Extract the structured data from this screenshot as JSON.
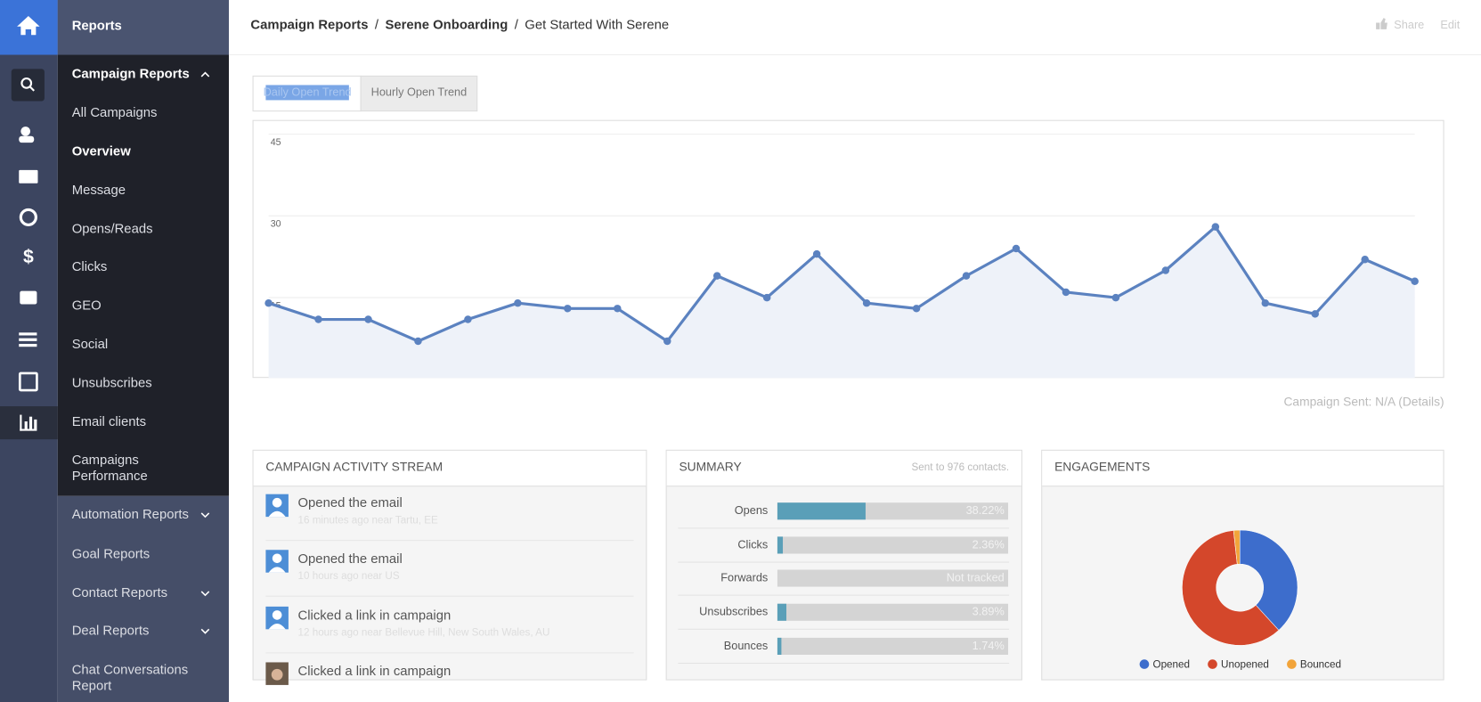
{
  "header": {
    "breadcrumbs": [
      "Campaign Reports",
      "Serene Onboarding",
      "Get Started With Serene"
    ],
    "separator": "/",
    "actions": [
      "Share",
      "Edit"
    ]
  },
  "sidebar": {
    "title": "Reports",
    "menu": [
      "Campaign Reports",
      "All Campaigns",
      "Overview",
      "Message",
      "Opens/Reads",
      "Clicks",
      "GEO",
      "Social",
      "Unsubscribes",
      "Email clients",
      "Campaigns Performance",
      "Automation Reports",
      "Goal Reports",
      "Contact Reports",
      "Deal Reports",
      "Chat Conversations Report"
    ]
  },
  "tabs": [
    "Daily Open Trend",
    "Hourly Open Trend"
  ],
  "open_trend": {
    "type": "line",
    "values": [
      14,
      11,
      11,
      7,
      11,
      14,
      13,
      13,
      7,
      19,
      15,
      23,
      14,
      13,
      19,
      24,
      16,
      15,
      20,
      28,
      14,
      12,
      22,
      18
    ],
    "color": "#5b82c0",
    "ylim": [
      0,
      45
    ],
    "yticks": [
      15,
      30,
      45
    ],
    "grid": true
  },
  "campaign_sent": "Campaign Sent: N/A (Details)",
  "activity_stream": {
    "title": "CAMPAIGN ACTIVITY STREAM",
    "items": [
      {
        "action": "Opened the email",
        "detail": "16 minutes ago near Tartu, EE"
      },
      {
        "action": "Opened the email",
        "detail": "10 hours ago near US"
      },
      {
        "action": "Clicked a link in campaign",
        "detail": "12 hours ago near Bellevue Hill, New South Wales, AU"
      },
      {
        "action": "Clicked a link in campaign"
      }
    ]
  },
  "summary": {
    "title": "SUMMARY",
    "note": "Sent to 976 contacts.",
    "xlim": [
      0,
      100
    ],
    "color": "#5a9fb8",
    "rows": [
      {
        "label": "Opens",
        "value": 38.22,
        "value_label": "38.22%"
      },
      {
        "label": "Clicks",
        "value": 2.36,
        "value_label": "2.36%"
      },
      {
        "label": "Forwards",
        "value": null,
        "value_label": "Not tracked"
      },
      {
        "label": "Unsubscribes",
        "value": 3.89,
        "value_label": "3.89%"
      },
      {
        "label": "Bounces",
        "value": 1.74,
        "value_label": "1.74%"
      }
    ]
  },
  "engagements": {
    "title": "ENGAGEMENTS",
    "type": "pie",
    "series": [
      {
        "name": "Opened",
        "color": "#3d6dcc",
        "value": 38.22
      },
      {
        "name": "Unopened",
        "color": "#d4472b",
        "value": 60.04
      },
      {
        "name": "Bounced",
        "color": "#f2a43a",
        "value": 1.74
      }
    ]
  }
}
